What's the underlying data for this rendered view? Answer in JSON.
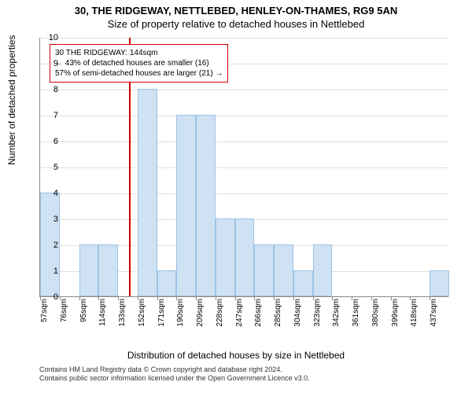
{
  "title_main": "30, THE RIDGEWAY, NETTLEBED, HENLEY-ON-THAMES, RG9 5AN",
  "title_sub": "Size of property relative to detached houses in Nettlebed",
  "ylabel": "Number of detached properties",
  "xlabel": "Distribution of detached houses by size in Nettlebed",
  "chart": {
    "type": "histogram",
    "ylim": [
      0,
      10
    ],
    "ytick_step": 1,
    "x_start": 57,
    "x_bin": 19,
    "x_n_labels": 21,
    "x_unit": "sqm",
    "bars": [
      4,
      0,
      2,
      2,
      0,
      8,
      1,
      7,
      7,
      3,
      3,
      2,
      2,
      1,
      2,
      0,
      0,
      0,
      0,
      0,
      1
    ],
    "bar_fill": "#cfe2f3",
    "bar_stroke": "#9cc2e5",
    "grid_color": "#e0e0e0",
    "axis_color": "#888888",
    "background": "#ffffff",
    "marker_x": 144,
    "marker_color": "#d00000",
    "label_fontsize": 12,
    "tick_fontsize": 10
  },
  "annotation": {
    "line1": "30 THE RIDGEWAY: 144sqm",
    "line2": "← 43% of detached houses are smaller (16)",
    "line3": "57% of semi-detached houses are larger (21) →",
    "border_color": "#d00000"
  },
  "footer": {
    "line1": "Contains HM Land Registry data © Crown copyright and database right 2024.",
    "line2": "Contains public sector information licensed under the Open Government Licence v3.0."
  }
}
